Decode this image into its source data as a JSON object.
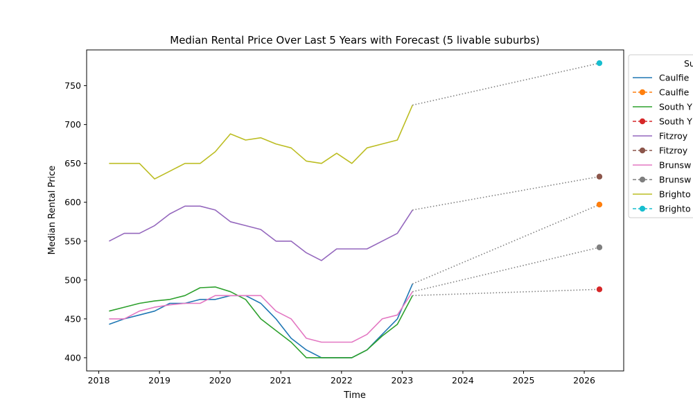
{
  "chart_data": {
    "type": "line",
    "title": "Median Rental Price Over Last 5 Years with Forecast (5 livable suburbs)",
    "xlabel": "Time",
    "ylabel": "Median Rental Price",
    "xlim": [
      2017.8,
      2026.65
    ],
    "ylim": [
      383,
      796
    ],
    "xticks": [
      2018,
      2019,
      2020,
      2021,
      2022,
      2023,
      2024,
      2025,
      2026
    ],
    "yticks": [
      400,
      450,
      500,
      550,
      600,
      650,
      700,
      750
    ],
    "grid": false,
    "legend": {
      "title": "Su",
      "placement": "right, clipped",
      "entries": [
        "Caulfie",
        "Caulfie",
        "South Y",
        "South Y",
        "Fitzroy",
        "Fitzroy",
        "Brunsw",
        "Brunsw",
        "Brighto",
        "Brighto"
      ]
    },
    "history_x": [
      2018.17,
      2018.42,
      2018.67,
      2018.92,
      2019.17,
      2019.42,
      2019.67,
      2019.92,
      2020.17,
      2020.42,
      2020.67,
      2020.92,
      2021.17,
      2021.42,
      2021.67,
      2021.92,
      2022.17,
      2022.42,
      2022.67,
      2022.92,
      2023.17
    ],
    "forecast_x": [
      2023.17,
      2026.25
    ],
    "series": [
      {
        "color": "#1f77b4",
        "values": [
          443,
          450,
          455,
          460,
          470,
          470,
          475,
          475,
          480,
          480,
          470,
          450,
          425,
          410,
          400,
          400,
          400,
          410,
          430,
          450,
          495
        ],
        "forecast": [
          495,
          597
        ]
      },
      {
        "color": "#2ca02c",
        "values": [
          460,
          465,
          470,
          473,
          475,
          480,
          490,
          491,
          485,
          475,
          450,
          435,
          420,
          400,
          400,
          400,
          400,
          410,
          428,
          443,
          480
        ],
        "forecast": [
          480,
          488
        ]
      },
      {
        "color": "#9467bd",
        "values": [
          550,
          560,
          560,
          570,
          585,
          595,
          595,
          590,
          575,
          570,
          565,
          550,
          550,
          535,
          525,
          540,
          540,
          540,
          550,
          560,
          590
        ],
        "forecast": [
          590,
          633
        ]
      },
      {
        "color": "#e377c2",
        "values": [
          450,
          450,
          460,
          465,
          468,
          470,
          470,
          480,
          480,
          480,
          480,
          460,
          450,
          425,
          420,
          420,
          420,
          430,
          450,
          455,
          485
        ],
        "forecast": [
          485,
          542
        ]
      },
      {
        "color": "#bcbd22",
        "values": [
          650,
          650,
          650,
          630,
          640,
          650,
          650,
          665,
          688,
          680,
          683,
          675,
          670,
          653,
          650,
          663,
          650,
          670,
          675,
          680,
          725
        ],
        "forecast": [
          725,
          779
        ]
      }
    ],
    "forecast_marker_colors": [
      "#ff7f0e",
      "#d62728",
      "#8c564b",
      "#7f7f7f",
      "#17becf"
    ]
  }
}
